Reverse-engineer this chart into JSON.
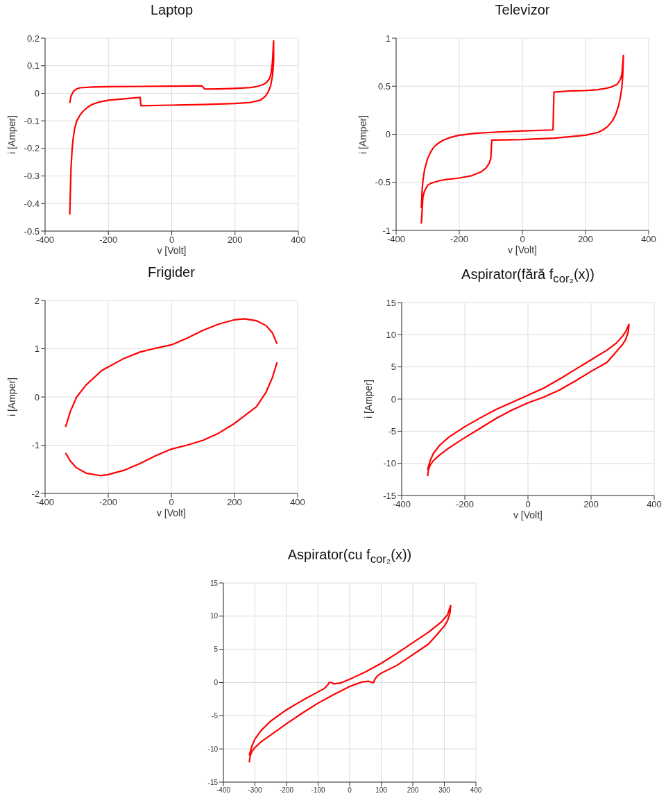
{
  "chart_data": [
    {
      "type": "line",
      "title": "Laptop",
      "xlabel": "v [Volt]",
      "ylabel": "i [Amper]",
      "xlim": [
        -400,
        400
      ],
      "xticks": [
        -400,
        -200,
        0,
        200,
        400
      ],
      "ylim": [
        -0.5,
        0.2
      ],
      "yticks": [
        -0.5,
        -0.4,
        -0.3,
        -0.2,
        -0.1,
        0,
        0.1,
        0.2
      ],
      "grid": true,
      "series": [
        {
          "color": "#ff0000",
          "x": [
            -322,
            -318,
            -310,
            -300,
            -290,
            -250,
            -200,
            -100,
            0,
            95,
            105,
            150,
            200,
            250,
            270,
            290,
            300,
            310,
            315,
            318,
            322,
            322,
            320,
            318,
            312,
            305,
            295,
            280,
            250,
            200,
            100,
            0,
            -97,
            -100,
            -150,
            -200,
            -230,
            -250,
            -265,
            -280,
            -290,
            -300,
            -307,
            -312,
            -315,
            -318,
            -320,
            -322
          ],
          "values": [
            -0.035,
            -0.01,
            0.008,
            0.016,
            0.02,
            0.023,
            0.024,
            0.025,
            0.026,
            0.027,
            0.015,
            0.016,
            0.018,
            0.021,
            0.025,
            0.032,
            0.04,
            0.055,
            0.08,
            0.11,
            0.19,
            0.12,
            0.085,
            0.06,
            0.025,
            0.005,
            -0.012,
            -0.025,
            -0.033,
            -0.037,
            -0.041,
            -0.043,
            -0.045,
            -0.015,
            -0.02,
            -0.025,
            -0.032,
            -0.04,
            -0.05,
            -0.065,
            -0.08,
            -0.1,
            -0.13,
            -0.17,
            -0.21,
            -0.27,
            -0.35,
            -0.44
          ]
        }
      ]
    },
    {
      "type": "line",
      "title": "Televizor",
      "xlabel": "v [Volt]",
      "ylabel": "i [Amper]",
      "xlim": [
        -400,
        400
      ],
      "xticks": [
        -400,
        -200,
        0,
        200,
        400
      ],
      "ylim": [
        -1,
        1
      ],
      "yticks": [
        -1,
        -0.5,
        0,
        0.5,
        1
      ],
      "grid": true,
      "series": [
        {
          "color": "#ff0000",
          "x": [
            -320,
            -318,
            -315,
            -310,
            -300,
            -290,
            -280,
            -265,
            -250,
            -225,
            -200,
            -150,
            -100,
            0,
            97,
            100,
            150,
            200,
            240,
            260,
            280,
            290,
            300,
            310,
            315,
            320,
            318,
            315,
            310,
            305,
            295,
            285,
            270,
            255,
            240,
            200,
            100,
            0,
            -97,
            -100,
            -105,
            -115,
            -130,
            -160,
            -200,
            -240,
            -260,
            -280,
            -290,
            -300,
            -310,
            -315,
            -317,
            -320
          ],
          "values": [
            -0.77,
            -0.6,
            -0.48,
            -0.37,
            -0.25,
            -0.18,
            -0.13,
            -0.09,
            -0.06,
            -0.03,
            -0.01,
            0.01,
            0.02,
            0.035,
            0.045,
            0.44,
            0.45,
            0.455,
            0.465,
            0.475,
            0.49,
            0.505,
            0.52,
            0.57,
            0.62,
            0.82,
            0.62,
            0.48,
            0.38,
            0.3,
            0.2,
            0.14,
            0.08,
            0.045,
            0.02,
            -0.01,
            -0.04,
            -0.055,
            -0.06,
            -0.25,
            -0.3,
            -0.35,
            -0.39,
            -0.43,
            -0.455,
            -0.47,
            -0.48,
            -0.5,
            -0.51,
            -0.53,
            -0.59,
            -0.65,
            -0.75,
            -0.93
          ]
        }
      ]
    },
    {
      "type": "line",
      "title": "Frigider",
      "xlabel": "v [Volt]",
      "ylabel": "i [Amper]",
      "xlim": [
        -400,
        400
      ],
      "xticks": [
        -400,
        -200,
        0,
        200,
        400
      ],
      "ylim": [
        -2,
        2
      ],
      "yticks": [
        -2,
        -1,
        0,
        1,
        2
      ],
      "grid": true,
      "series": [
        {
          "color": "#ff0000",
          "x": [
            -335,
            -320,
            -300,
            -270,
            -220,
            -150,
            -100,
            -50,
            0,
            50,
            100,
            150,
            200,
            230,
            270,
            300,
            320,
            335
          ],
          "values": [
            -0.62,
            -0.3,
            0,
            0.25,
            0.55,
            0.8,
            0.93,
            1.01,
            1.08,
            1.22,
            1.38,
            1.51,
            1.6,
            1.62,
            1.58,
            1.48,
            1.33,
            1.1
          ]
        },
        {
          "color": "#ff0000",
          "x": [
            335,
            320,
            300,
            270,
            200,
            150,
            100,
            50,
            0,
            -50,
            -100,
            -150,
            -200,
            -225,
            -270,
            -300,
            -320,
            -335
          ],
          "values": [
            0.72,
            0.4,
            0.1,
            -0.2,
            -0.55,
            -0.75,
            -0.9,
            -1.0,
            -1.08,
            -1.22,
            -1.38,
            -1.52,
            -1.61,
            -1.63,
            -1.58,
            -1.47,
            -1.33,
            -1.16
          ]
        }
      ]
    },
    {
      "type": "line",
      "title": "Aspirator(fără f$_{cor₂}$(x))",
      "xlabel": "v [Volt]",
      "ylabel": "i [Amper]",
      "xlim": [
        -400,
        400
      ],
      "xticks": [
        -400,
        -200,
        0,
        200,
        400
      ],
      "ylim": [
        -15,
        15
      ],
      "yticks": [
        -15,
        -10,
        -5,
        0,
        5,
        10,
        15
      ],
      "grid": true,
      "series": [
        {
          "color": "#ff0000",
          "x": [
            -318,
            -310,
            -300,
            -280,
            -250,
            -200,
            -150,
            -100,
            -50,
            0,
            50,
            100,
            150,
            200,
            250,
            280,
            300,
            310,
            320,
            318,
            310,
            300,
            270,
            250,
            200,
            150,
            100,
            50,
            0,
            -50,
            -100,
            -150,
            -200,
            -250,
            -280,
            -300,
            -310,
            -315,
            -318
          ],
          "values": [
            -11,
            -9.6,
            -8.5,
            -7.2,
            -5.9,
            -4.3,
            -2.9,
            -1.6,
            -0.5,
            0.6,
            1.7,
            3.1,
            4.6,
            6.1,
            7.6,
            8.7,
            9.8,
            10.5,
            11.6,
            10.5,
            9.3,
            8.5,
            6.8,
            5.7,
            4.3,
            2.8,
            1.4,
            0.3,
            -0.6,
            -1.7,
            -3.0,
            -4.5,
            -6.0,
            -7.6,
            -8.7,
            -9.6,
            -10.3,
            -11,
            -12
          ]
        }
      ]
    },
    {
      "type": "line",
      "title": "Aspirator(cu f$_{cor₂}$(x))",
      "xlim": [
        -400,
        400
      ],
      "xticks": [
        -400,
        -300,
        -200,
        -100,
        0,
        100,
        200,
        300,
        400
      ],
      "ylim": [
        -15,
        15
      ],
      "yticks": [
        -15,
        -10,
        -5,
        0,
        5,
        10,
        15
      ],
      "grid": true,
      "series": [
        {
          "color": "#ff0000",
          "x": [
            -318,
            -310,
            -300,
            -280,
            -250,
            -200,
            -150,
            -100,
            -80,
            -70,
            -65,
            -58,
            -50,
            -30,
            0,
            50,
            100,
            150,
            200,
            250,
            290,
            310,
            320,
            318,
            310,
            300,
            250,
            200,
            150,
            100,
            88,
            80,
            76,
            70,
            60,
            40,
            0,
            -50,
            -100,
            -150,
            -200,
            -250,
            -280,
            -300,
            -310,
            -315,
            -318
          ],
          "values": [
            -11,
            -9.6,
            -8.5,
            -7.2,
            -5.8,
            -4.1,
            -2.7,
            -1.4,
            -0.9,
            -0.4,
            0,
            0,
            -0.2,
            -0.1,
            0.5,
            1.6,
            2.9,
            4.4,
            6.0,
            7.6,
            9.1,
            10.2,
            11.6,
            10.5,
            9.3,
            8.5,
            5.8,
            4.2,
            2.6,
            1.4,
            1.0,
            0.5,
            0,
            0,
            0.2,
            0.1,
            -0.6,
            -1.8,
            -3.1,
            -4.6,
            -6.2,
            -7.9,
            -8.9,
            -9.8,
            -10.4,
            -11,
            -12
          ]
        }
      ]
    }
  ]
}
